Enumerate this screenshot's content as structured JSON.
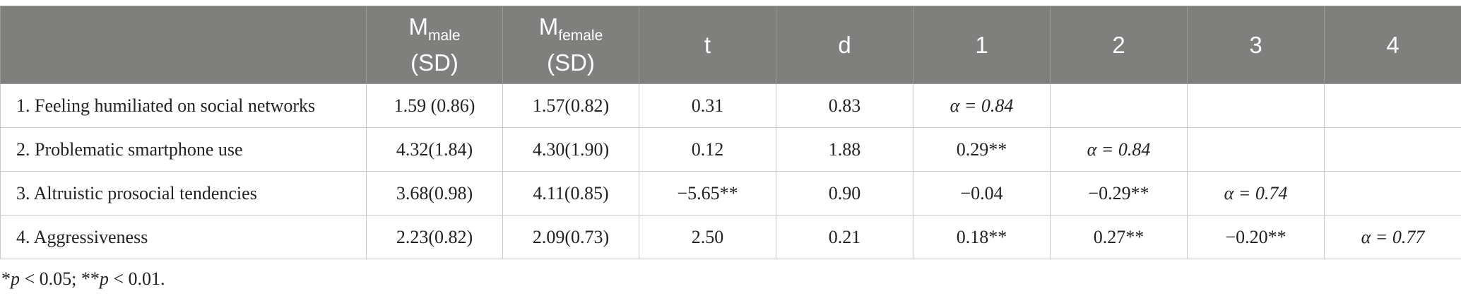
{
  "header": {
    "col0": "",
    "m_male": {
      "main": "M",
      "sub": "male",
      "line2": "(SD)"
    },
    "m_female": {
      "main": "M",
      "sub": "female",
      "line2": "(SD)"
    },
    "t": "t",
    "d": "d",
    "c1": "1",
    "c2": "2",
    "c3": "3",
    "c4": "4"
  },
  "rows": [
    {
      "label": "1.  Feeling humiliated on social networks",
      "m_male": "1.59 (0.86)",
      "m_female": "1.57(0.82)",
      "t": "0.31",
      "d": "0.83",
      "c1": "α = 0.84",
      "c2": "",
      "c3": "",
      "c4": ""
    },
    {
      "label": "2.  Problematic smartphone use",
      "m_male": "4.32(1.84)",
      "m_female": "4.30(1.90)",
      "t": "0.12",
      "d": "1.88",
      "c1": "0.29**",
      "c2": "α = 0.84",
      "c3": "",
      "c4": ""
    },
    {
      "label": "3.  Altruistic prosocial tendencies",
      "m_male": "3.68(0.98)",
      "m_female": "4.11(0.85)",
      "t": "−5.65**",
      "d": "0.90",
      "c1": "−0.04",
      "c2": "−0.29**",
      "c3": "α = 0.74",
      "c4": ""
    },
    {
      "label": "4.  Aggressiveness",
      "m_male": "2.23(0.82)",
      "m_female": "2.09(0.73)",
      "t": "2.50",
      "d": "0.21",
      "c1": "0.18**",
      "c2": "0.27**",
      "c3": "−0.20**",
      "c4": "α = 0.77"
    }
  ],
  "footnote": {
    "star1": "*",
    "p1": "p",
    "part1": " < 0.05; **",
    "p2": "p",
    "part2": " < 0.01."
  }
}
